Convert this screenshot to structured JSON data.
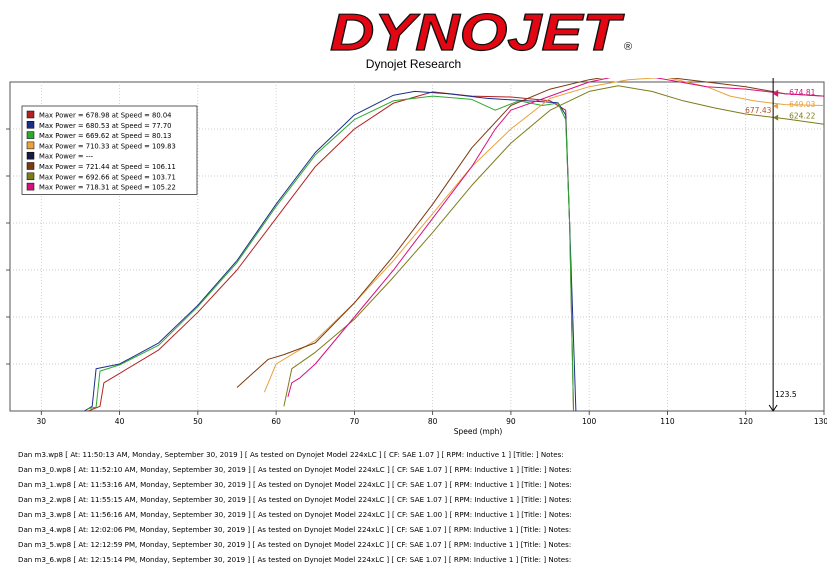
{
  "header": {
    "logo_text": "DYNOJET",
    "registered_mark": "®",
    "subtitle": "Dynojet Research"
  },
  "colors": {
    "logo_red": "#e30613",
    "logo_black": "#111111"
  },
  "chart_data": {
    "type": "line",
    "title": "",
    "xlabel": "Speed (mph)",
    "ylabel": "",
    "xlim": [
      26,
      130
    ],
    "ylim": [
      0,
      700
    ],
    "x_ticks": [
      30,
      40,
      50,
      60,
      70,
      80,
      90,
      100,
      110,
      120,
      130
    ],
    "grid": true,
    "legend_position": "top-left",
    "cursor": {
      "x": 123.5,
      "label": "123.5"
    },
    "cursor_values": [
      {
        "label": "677.43",
        "color": "#b5522d",
        "y": 677.43
      },
      {
        "label": "674.81",
        "color": "#d8107f",
        "y": 674.81
      },
      {
        "label": "649.03",
        "color": "#e8a33c",
        "y": 649.03
      },
      {
        "label": "624.22",
        "color": "#7d7c1a",
        "y": 624.22
      }
    ],
    "legend": [
      {
        "label": "Max Power = 678.98 at Speed = 80.04",
        "color": "#b22222"
      },
      {
        "label": "Max Power = 680.53 at Speed = 77.70",
        "color": "#1a2f8c"
      },
      {
        "label": "Max Power = 669.62 at Speed = 80.13",
        "color": "#2ea82e"
      },
      {
        "label": "Max Power = 710.33 at Speed = 109.83",
        "color": "#e8a33c"
      },
      {
        "label": "Max Power = ---",
        "color": "#1a1a40"
      },
      {
        "label": "Max Power = 721.44 at Speed = 106.11",
        "color": "#7a3b12"
      },
      {
        "label": "Max Power = 692.66 at Speed = 103.71",
        "color": "#7d7c1a"
      },
      {
        "label": "Max Power = 718.31 at Speed = 105.22",
        "color": "#d8107f"
      }
    ],
    "series": [
      {
        "color": "#b22222",
        "points": [
          [
            36,
            0
          ],
          [
            37.5,
            10
          ],
          [
            38,
            60
          ],
          [
            40,
            80
          ],
          [
            45,
            130
          ],
          [
            50,
            210
          ],
          [
            55,
            300
          ],
          [
            60,
            410
          ],
          [
            65,
            520
          ],
          [
            70,
            600
          ],
          [
            75,
            655
          ],
          [
            80,
            679
          ],
          [
            85,
            670
          ],
          [
            90,
            668
          ],
          [
            95,
            660
          ],
          [
            97,
            640
          ],
          [
            97.5,
            400
          ],
          [
            98,
            0
          ]
        ]
      },
      {
        "color": "#1a2f8c",
        "points": [
          [
            35.5,
            0
          ],
          [
            36.5,
            10
          ],
          [
            37,
            90
          ],
          [
            40,
            100
          ],
          [
            45,
            145
          ],
          [
            50,
            225
          ],
          [
            55,
            320
          ],
          [
            60,
            440
          ],
          [
            65,
            550
          ],
          [
            70,
            630
          ],
          [
            75,
            672
          ],
          [
            77.7,
            680
          ],
          [
            82,
            675
          ],
          [
            87,
            665
          ],
          [
            92,
            660
          ],
          [
            96,
            656
          ],
          [
            97,
            630
          ],
          [
            97.5,
            400
          ],
          [
            98.3,
            0
          ]
        ]
      },
      {
        "color": "#2ea82e",
        "points": [
          [
            36,
            5
          ],
          [
            37,
            8
          ],
          [
            37.5,
            85
          ],
          [
            40,
            98
          ],
          [
            45,
            140
          ],
          [
            50,
            222
          ],
          [
            55,
            316
          ],
          [
            60,
            435
          ],
          [
            65,
            545
          ],
          [
            70,
            620
          ],
          [
            75,
            660
          ],
          [
            80,
            670
          ],
          [
            85,
            663
          ],
          [
            88,
            640
          ],
          [
            91,
            660
          ],
          [
            94,
            650
          ],
          [
            96,
            655
          ],
          [
            97,
            620
          ],
          [
            97.5,
            400
          ],
          [
            98,
            0
          ]
        ]
      },
      {
        "color": "#e8a33c",
        "points": [
          [
            58.5,
            40
          ],
          [
            59,
            60
          ],
          [
            60,
            100
          ],
          [
            62,
            120
          ],
          [
            65,
            150
          ],
          [
            70,
            230
          ],
          [
            75,
            320
          ],
          [
            80,
            420
          ],
          [
            85,
            520
          ],
          [
            90,
            600
          ],
          [
            95,
            665
          ],
          [
            100,
            690
          ],
          [
            105,
            705
          ],
          [
            109.83,
            710
          ],
          [
            115,
            690
          ],
          [
            118,
            670
          ],
          [
            121,
            660
          ],
          [
            125,
            652
          ],
          [
            130,
            650
          ]
        ]
      },
      {
        "color": "#7a3b12",
        "points": [
          [
            55,
            50
          ],
          [
            57,
            80
          ],
          [
            59,
            110
          ],
          [
            61,
            120
          ],
          [
            65,
            145
          ],
          [
            70,
            230
          ],
          [
            75,
            330
          ],
          [
            80,
            440
          ],
          [
            85,
            560
          ],
          [
            90,
            650
          ],
          [
            95,
            685
          ],
          [
            100,
            705
          ],
          [
            106.11,
            721
          ],
          [
            110,
            710
          ],
          [
            115,
            700
          ],
          [
            120,
            690
          ],
          [
            125,
            675
          ],
          [
            130,
            670
          ]
        ]
      },
      {
        "color": "#7d7c1a",
        "points": [
          [
            61,
            10
          ],
          [
            62,
            90
          ],
          [
            65,
            125
          ],
          [
            70,
            195
          ],
          [
            75,
            285
          ],
          [
            80,
            380
          ],
          [
            85,
            480
          ],
          [
            90,
            570
          ],
          [
            95,
            640
          ],
          [
            100,
            680
          ],
          [
            103.71,
            692
          ],
          [
            108,
            680
          ],
          [
            112,
            660
          ],
          [
            116,
            645
          ],
          [
            120,
            632
          ],
          [
            125,
            622
          ],
          [
            130,
            610
          ]
        ]
      },
      {
        "color": "#d8107f",
        "points": [
          [
            61.5,
            30
          ],
          [
            62,
            60
          ],
          [
            63,
            70
          ],
          [
            65,
            100
          ],
          [
            70,
            200
          ],
          [
            75,
            300
          ],
          [
            80,
            410
          ],
          [
            85,
            520
          ],
          [
            88,
            600
          ],
          [
            90,
            640
          ],
          [
            95,
            670
          ],
          [
            100,
            700
          ],
          [
            105.22,
            718
          ],
          [
            110,
            705
          ],
          [
            115,
            690
          ],
          [
            120,
            685
          ],
          [
            125,
            675
          ],
          [
            130,
            670
          ]
        ]
      }
    ]
  },
  "notes": [
    "Dan m3.wp8  [ At: 11:50:13 AM, Monday, September 30, 2019 ] [ As tested on Dynojet Model 224xLC ] [ CF: SAE 1.07 ] [ RPM: Inductive 1 ] [Title: ]   Notes:",
    "Dan m3_0.wp8  [ At: 11:52:10 AM, Monday, September 30, 2019 ] [ As tested on Dynojet Model 224xLC ] [ CF: SAE 1.07 ] [ RPM: Inductive 1 ] [Title: ]   Notes:",
    "Dan m3_1.wp8  [ At: 11:53:16 AM, Monday, September 30, 2019 ] [ As tested on Dynojet Model 224xLC ] [ CF: SAE 1.07 ] [ RPM: Inductive 1 ] [Title: ]   Notes:",
    "Dan m3_2.wp8  [ At: 11:55:15 AM, Monday, September 30, 2019 ] [ As tested on Dynojet Model 224xLC ] [ CF: SAE 1.07 ] [ RPM: Inductive 1 ] [Title: ]   Notes:",
    "Dan m3_3.wp8  [ At: 11:56:16 AM, Monday, September 30, 2019 ] [ As tested on Dynojet Model 224xLC ] [ CF: SAE 1.00 ] [ RPM: Inductive 1 ] [Title: ]   Notes:",
    "Dan m3_4.wp8  [ At: 12:02:06 PM, Monday, September 30, 2019 ] [ As tested on Dynojet Model 224xLC ] [ CF: SAE 1.07 ] [ RPM: Inductive 1 ] [Title: ]   Notes:",
    "Dan m3_5.wp8  [ At: 12:12:59 PM, Monday, September 30, 2019 ] [ As tested on Dynojet Model 224xLC ] [ CF: SAE 1.07 ] [ RPM: Inductive 1 ] [Title: ]   Notes:",
    "Dan m3_6.wp8  [ At: 12:15:14 PM, Monday, September 30, 2019 ] [ As tested on Dynojet Model 224xLC ] [ CF: SAE 1.07 ] [ RPM: Inductive 1 ] [Title: ]   Notes:"
  ]
}
